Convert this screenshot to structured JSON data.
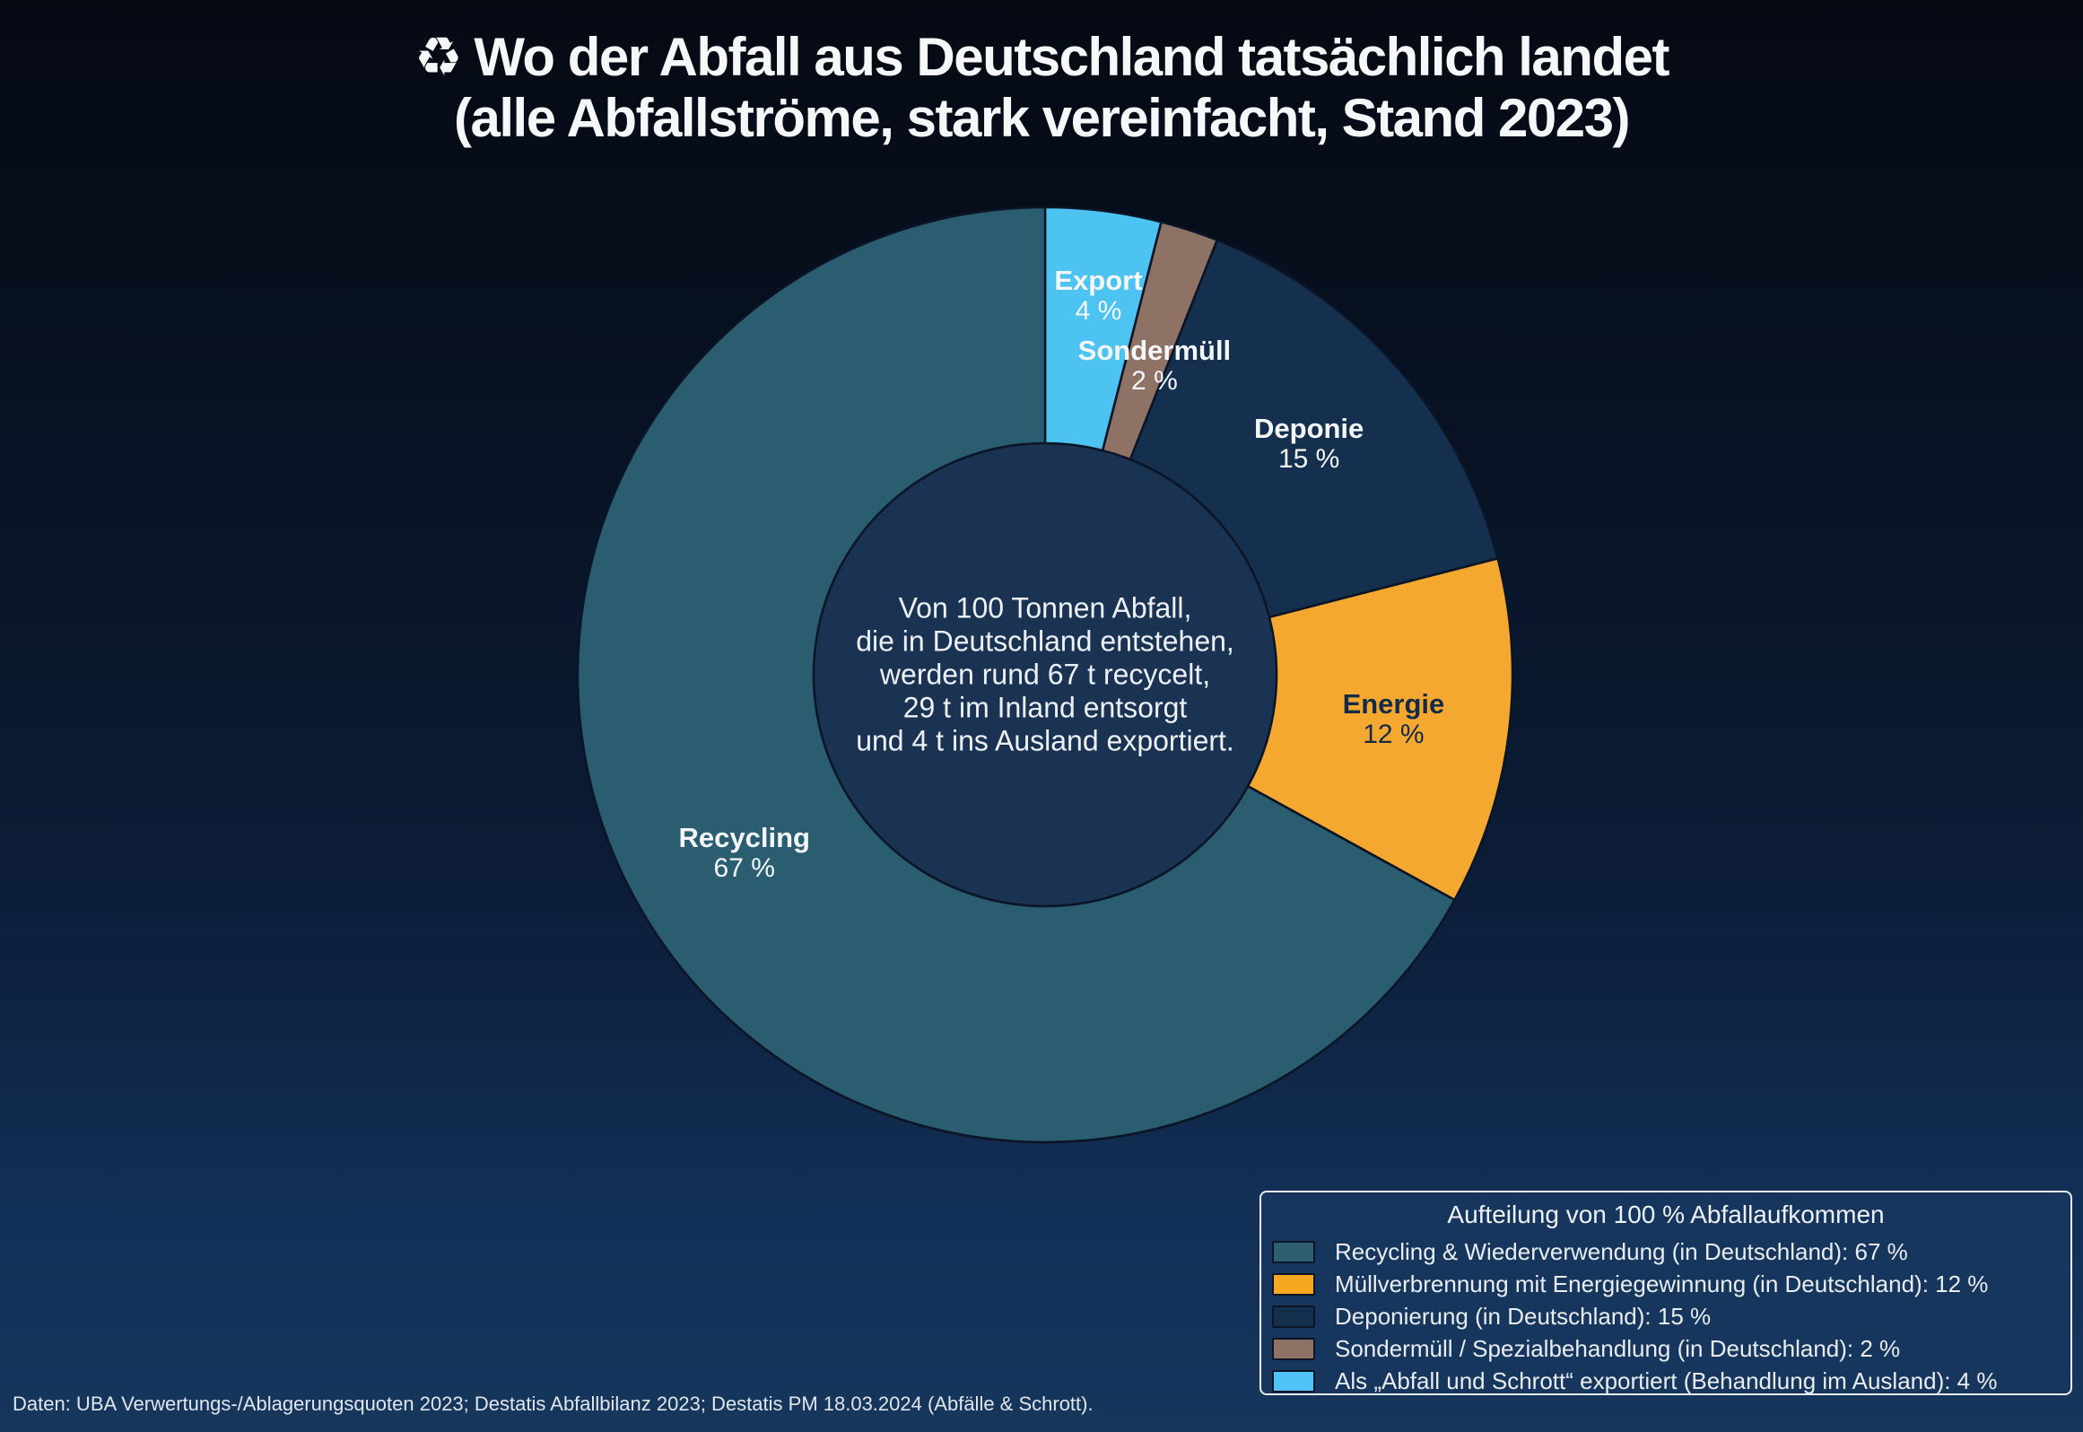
{
  "title": {
    "icon": "♻",
    "line1": "Wo der Abfall aus Deutschland tatsächlich landet",
    "line2": "(alle Abfallströme, stark vereinfacht, Stand 2023)"
  },
  "chart_data": {
    "type": "pie",
    "donut": true,
    "start_at": "12-oclock",
    "direction": "clockwise",
    "unit": "%",
    "total": 100,
    "slices": [
      {
        "key": "export",
        "label": "Export",
        "value": 4,
        "value_label": "4 %",
        "color": "#4dc3f2",
        "text_color": "#f4f7f9"
      },
      {
        "key": "sondermuell",
        "label": "Sondermüll",
        "value": 2,
        "value_label": "2 %",
        "color": "#8e7265",
        "text_color": "#f4f7f9"
      },
      {
        "key": "deponie",
        "label": "Deponie",
        "value": 15,
        "value_label": "15 %",
        "color": "#15304e",
        "text_color": "#f4f7f9"
      },
      {
        "key": "energie",
        "label": "Energie",
        "value": 12,
        "value_label": "12 %",
        "color": "#f5a82f",
        "text_color": "#142b47"
      },
      {
        "key": "recycling",
        "label": "Recycling",
        "value": 67,
        "value_label": "67 %",
        "color": "#2a5d70",
        "text_color": "#f4f7f9"
      }
    ],
    "hole_color": "#1a3353",
    "outline_color": "#0b1526",
    "center_text_lines": [
      "Von 100 Tonnen Abfall,",
      "die in Deutschland entstehen,",
      "werden rund 67 t recycelt,",
      "29 t im Inland entsorgt",
      "und 4 t ins Ausland exportiert."
    ]
  },
  "legend": {
    "title": "Aufteilung von 100 % Abfallaufkommen",
    "items": [
      {
        "label": "Recycling & Wiederverwendung (in Deutschland): 67 %",
        "color": "#2e5f70"
      },
      {
        "label": "Müllverbrennung mit Energiegewinnung (in Deutschland): 12 %",
        "color": "#f5a820"
      },
      {
        "label": "Deponierung (in Deutschland): 15 %",
        "color": "#15304e"
      },
      {
        "label": "Sondermüll / Spezialbehandlung (in Deutschland): 2 %",
        "color": "#8e7265"
      },
      {
        "label": "Als „Abfall und Schrott“ exportiert (Behandlung im Ausland): 4 %",
        "color": "#4fc3f7"
      }
    ]
  },
  "footer": {
    "text": "Daten: UBA Verwertungs-/Ablagerungsquoten 2023; Destatis Abfallbilanz 2023; Destatis PM 18.03.2024 (Abfälle & Schrott)."
  }
}
